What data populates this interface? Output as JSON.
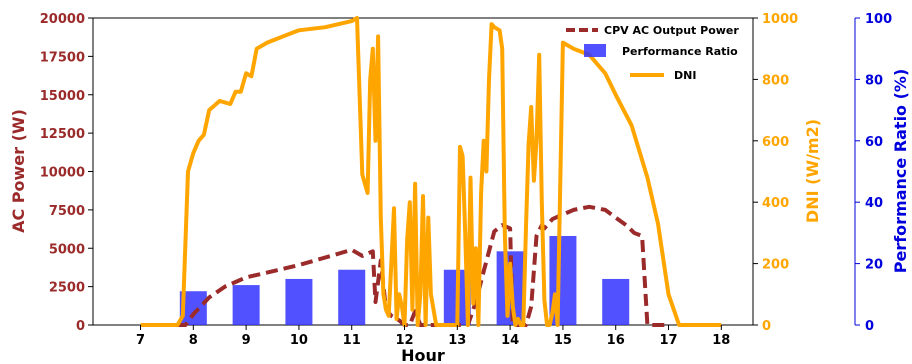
{
  "colors": {
    "ac_power": "#9b2a2a",
    "dni": "#ffa500",
    "performance_ratio": "#3333ff",
    "pr_axis": "#0000dd"
  },
  "chart_data": {
    "type": "line",
    "xlabel": "Hour",
    "xlim": [
      6.1,
      18.6
    ],
    "x_ticks": [
      "7",
      "8",
      "9",
      "10",
      "11",
      "12",
      "13",
      "14",
      "15",
      "16",
      "17",
      "18"
    ],
    "axes": {
      "left": {
        "label": "AC Power (W)",
        "ylim": [
          0,
          20000
        ],
        "ticks": [
          "0",
          "2500",
          "5000",
          "7500",
          "10000",
          "12500",
          "15000",
          "17500",
          "20000"
        ]
      },
      "right1": {
        "label": "DNI (W/m2)",
        "ylim": [
          0,
          1000
        ],
        "ticks": [
          "0",
          "200",
          "400",
          "600",
          "800",
          "1000"
        ]
      },
      "right2": {
        "label": "Performance Ratio (%)",
        "ylim": [
          0,
          100
        ],
        "ticks": [
          "0",
          "20",
          "40",
          "60",
          "80",
          "100"
        ]
      }
    },
    "legend": {
      "position": "top-right",
      "items": [
        "CPV AC Output Power",
        "Performance Ratio",
        "DNI"
      ]
    },
    "series": [
      {
        "name": "CPV AC Output Power",
        "axis": "left",
        "style": "dashed",
        "x": [
          7.0,
          7.6,
          7.85,
          8.0,
          8.3,
          8.6,
          9.0,
          9.5,
          10.0,
          10.4,
          10.7,
          11.0,
          11.2,
          11.4,
          11.45,
          11.55,
          11.65,
          11.75,
          11.9,
          12.0,
          12.1,
          12.2,
          12.3,
          12.5,
          12.8,
          13.0,
          13.2,
          13.35,
          13.5,
          13.7,
          13.85,
          14.0,
          14.05,
          14.15,
          14.3,
          14.4,
          14.5,
          14.6,
          14.65,
          14.8,
          15.0,
          15.2,
          15.5,
          15.8,
          16.0,
          16.2,
          16.35,
          16.5,
          16.6,
          17.0
        ],
        "y": [
          0,
          0,
          0,
          700,
          1800,
          2500,
          3100,
          3500,
          3900,
          4300,
          4600,
          4900,
          4500,
          4800,
          1500,
          4200,
          1000,
          600,
          300,
          0,
          0,
          900,
          0,
          0,
          0,
          0,
          0,
          1500,
          3500,
          6100,
          6500,
          6300,
          0,
          0,
          0,
          1200,
          5800,
          6500,
          6300,
          6900,
          7200,
          7500,
          7700,
          7500,
          7000,
          6500,
          6000,
          5800,
          0,
          0
        ]
      },
      {
        "name": "Performance Ratio",
        "axis": "right2",
        "type": "bar",
        "x": [
          8,
          9,
          10,
          11,
          13,
          14,
          15,
          16
        ],
        "values": [
          11,
          13,
          15,
          18,
          18,
          24,
          29,
          15
        ]
      },
      {
        "name": "DNI",
        "axis": "right1",
        "x": [
          7.0,
          7.7,
          7.8,
          7.9,
          8.0,
          8.1,
          8.2,
          8.3,
          8.5,
          8.7,
          8.8,
          8.9,
          9.0,
          9.1,
          9.2,
          9.4,
          9.7,
          10.0,
          10.5,
          11.0,
          11.1,
          11.2,
          11.3,
          11.35,
          11.4,
          11.45,
          11.5,
          11.55,
          11.6,
          11.65,
          11.7,
          11.75,
          11.8,
          11.85,
          11.9,
          11.95,
          12.0,
          12.05,
          12.1,
          12.15,
          12.2,
          12.25,
          12.3,
          12.35,
          12.4,
          12.45,
          12.5,
          12.6,
          12.7,
          12.8,
          12.9,
          13.0,
          13.05,
          13.1,
          13.15,
          13.2,
          13.25,
          13.3,
          13.35,
          13.4,
          13.45,
          13.5,
          13.55,
          13.6,
          13.65,
          13.7,
          13.8,
          13.85,
          13.9,
          13.95,
          14.0,
          14.05,
          14.1,
          14.15,
          14.2,
          14.25,
          14.3,
          14.35,
          14.4,
          14.45,
          14.5,
          14.55,
          14.6,
          14.65,
          14.7,
          14.75,
          14.8,
          14.85,
          14.9,
          15.0,
          15.2,
          15.5,
          15.8,
          16.0,
          16.3,
          16.6,
          16.8,
          17.0,
          17.2,
          17.35,
          17.5,
          18.0
        ],
        "y": [
          0,
          0,
          30,
          500,
          560,
          600,
          620,
          700,
          730,
          720,
          760,
          760,
          820,
          810,
          900,
          920,
          940,
          960,
          970,
          990,
          1000,
          490,
          430,
          800,
          900,
          600,
          940,
          350,
          100,
          50,
          30,
          200,
          380,
          20,
          100,
          60,
          0,
          280,
          400,
          50,
          460,
          0,
          100,
          420,
          0,
          350,
          100,
          0,
          0,
          0,
          0,
          0,
          580,
          550,
          300,
          0,
          480,
          70,
          250,
          0,
          430,
          600,
          500,
          800,
          980,
          970,
          960,
          900,
          300,
          30,
          200,
          60,
          0,
          20,
          0,
          0,
          320,
          590,
          710,
          470,
          600,
          880,
          400,
          80,
          0,
          0,
          40,
          100,
          0,
          920,
          900,
          880,
          820,
          750,
          650,
          480,
          330,
          100,
          0,
          0,
          0,
          0
        ]
      }
    ]
  }
}
